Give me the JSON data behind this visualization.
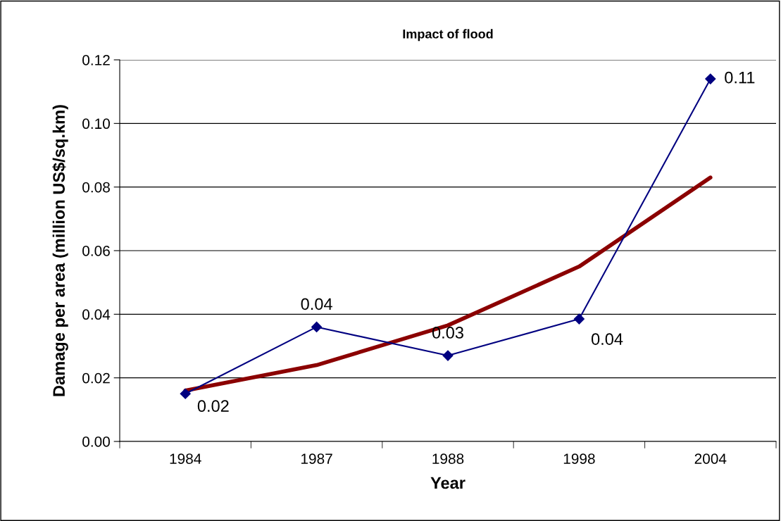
{
  "chart_data": {
    "type": "line",
    "title": "Impact of flood",
    "xlabel": "Year",
    "ylabel": "Damage per area (million US$/sq.km)",
    "categories": [
      "1984",
      "1987",
      "1988",
      "1998",
      "2004"
    ],
    "series": [
      {
        "color": "#000080",
        "values": [
          0.015,
          0.036,
          0.027,
          0.0385,
          0.114
        ],
        "value_labels": [
          "0.02",
          "0.04",
          "0.03",
          "0.04",
          "0.11"
        ],
        "marker": "diamond",
        "line_style": "solid"
      },
      {
        "type": "line",
        "color": "#8b0000",
        "values": [
          0.016,
          0.024,
          0.0365,
          0.055,
          0.083
        ],
        "marker": "none",
        "line_style": "solid"
      }
    ],
    "ylim": [
      0,
      0.12
    ],
    "yticks": [
      {
        "value": 0,
        "label": "0.00"
      },
      {
        "value": 0.02,
        "label": "0.02"
      },
      {
        "value": 0.04,
        "label": "0.04"
      },
      {
        "value": 0.06,
        "label": "0.06"
      },
      {
        "value": 0.08,
        "label": "0.08"
      },
      {
        "value": 0.1,
        "label": "0.10"
      },
      {
        "value": 0.12,
        "label": "0.12"
      }
    ],
    "grid": "y",
    "legend": false
  }
}
